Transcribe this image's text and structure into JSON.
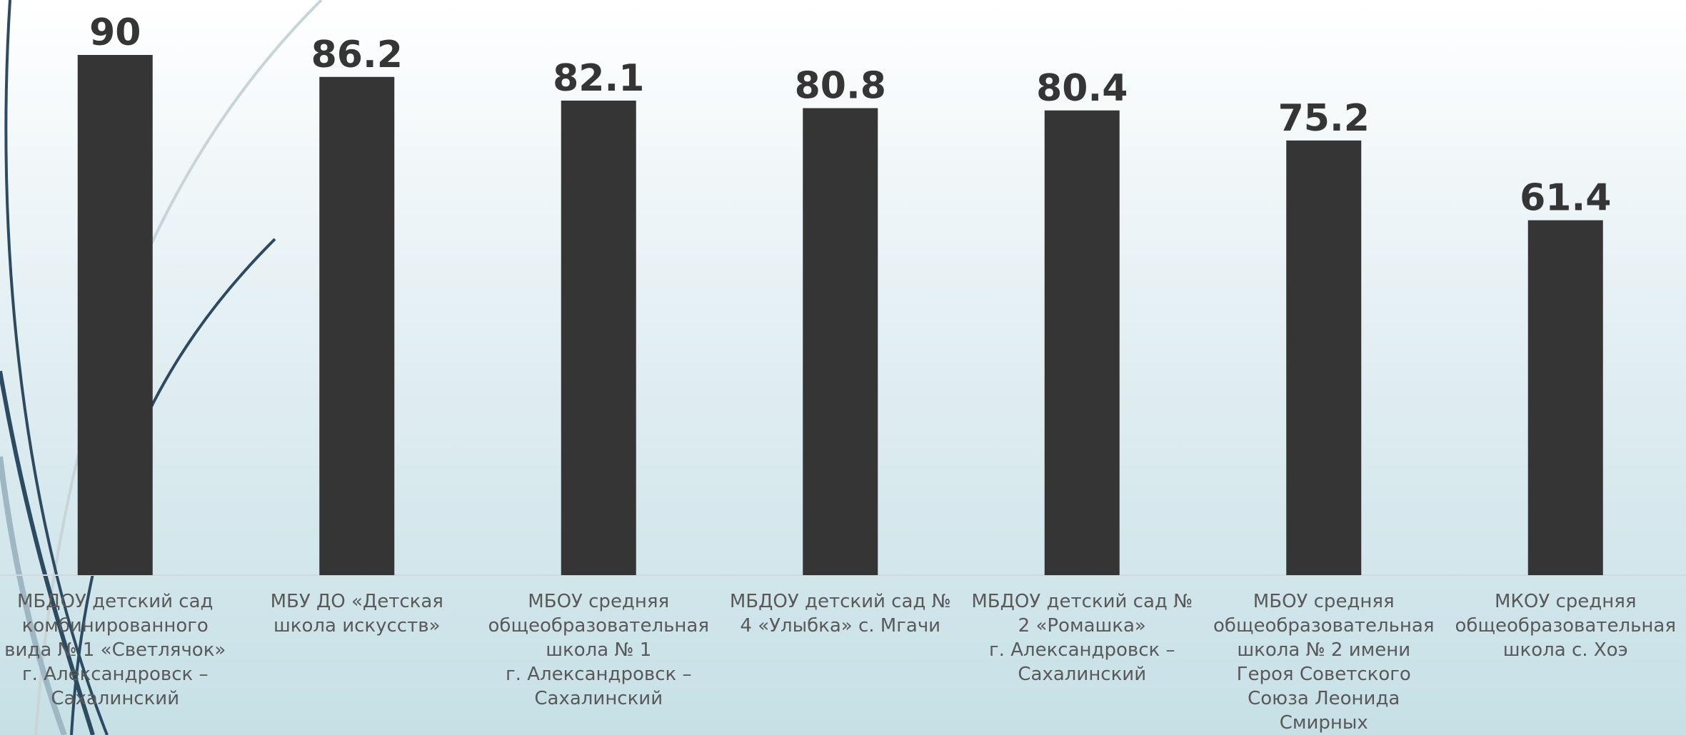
{
  "chart_data": {
    "type": "bar",
    "categories": [
      "МБДОУ детский сад\nкомбинированного\nвида № 1 «Светлячок»\nг. Александровск –\nСахалинский",
      "МБУ ДО «Детская\nшкола искусств»",
      "МБОУ средняя\nобщеобразовательная\nшкола № 1\nг. Александровск –\nСахалинский",
      "МБДОУ детский сад №\n4 «Улыбка» с. Мгачи",
      "МБДОУ детский сад №\n2 «Ромашка»\nг. Александровск –\nСахалинский",
      "МБОУ средняя\nобщеобразовательная\nшкола № 2 имени\nГероя Советского\nСоюза Леонида\nСмирных",
      "МКОУ средняя\nобщеобразовательная\nшкола с. Хоэ"
    ],
    "values": [
      90,
      86.2,
      82.1,
      80.8,
      80.4,
      75.2,
      61.4
    ],
    "color": "#353535"
  }
}
